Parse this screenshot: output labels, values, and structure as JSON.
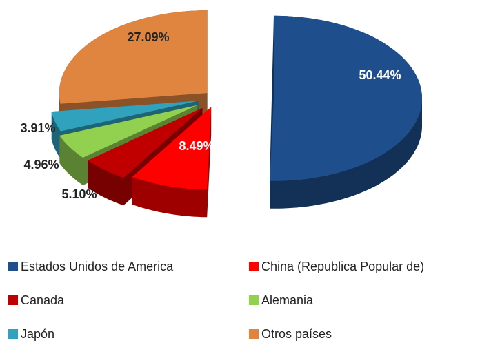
{
  "chart_data": {
    "type": "pie",
    "categories": [
      "Estados Unidos de America",
      "China (Republica Popular de)",
      "Canada",
      "Alemania",
      "Japón",
      "Otros países"
    ],
    "values": [
      50.44,
      8.49,
      5.1,
      4.96,
      3.91,
      27.09
    ],
    "value_labels": [
      "50.44%",
      "8.49%",
      "5.10%",
      "4.96%",
      "3.91%",
      "27.09%"
    ],
    "colors": [
      "#1f4e8c",
      "#ff0000",
      "#c00000",
      "#92d050",
      "#31a2bd",
      "#e0853f"
    ],
    "legend": "bottom"
  }
}
